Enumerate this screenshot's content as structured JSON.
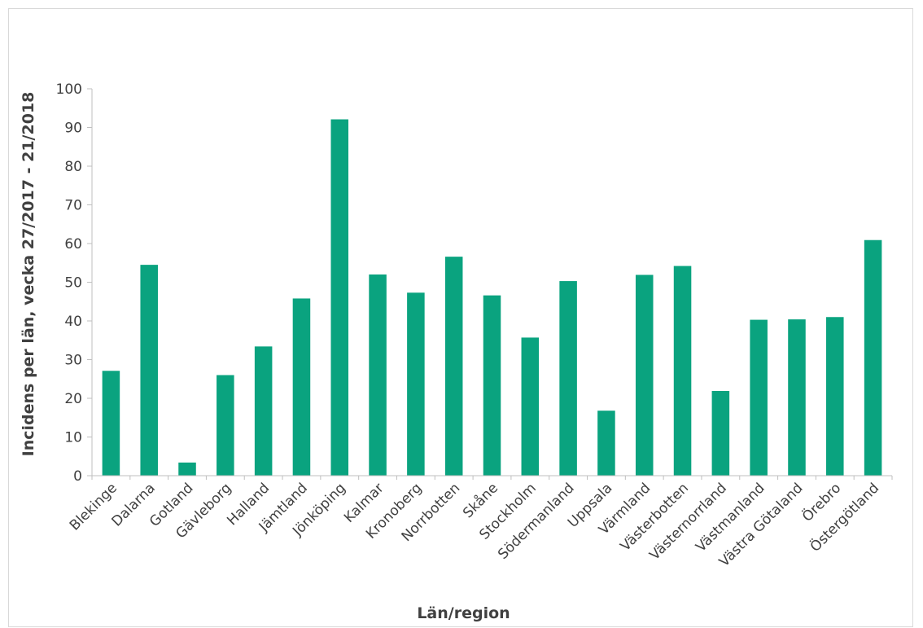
{
  "chart_data": {
    "type": "bar",
    "title": "",
    "xlabel": "Län/region",
    "ylabel": "Incidens per län, vecka 27/2017 - 21/2018",
    "ylim": [
      0,
      100
    ],
    "yticks": [
      0,
      10,
      20,
      30,
      40,
      50,
      60,
      70,
      80,
      90,
      100
    ],
    "bar_color": "#0aa37f",
    "grid": false,
    "categories": [
      "Blekinge",
      "Dalarna",
      "Gotland",
      "Gävleborg",
      "Halland",
      "Jämtland",
      "Jönköping",
      "Kalmar",
      "Kronoberg",
      "Norrbotten",
      "Skåne",
      "Stockholm",
      "Södermanland",
      "Uppsala",
      "Värmland",
      "Västerbotten",
      "Västernorrland",
      "Västmanland",
      "Västra Götaland",
      "Örebro",
      "Östergötland"
    ],
    "values": [
      27.1,
      54.5,
      3.4,
      26.0,
      33.4,
      45.8,
      92.1,
      52.0,
      47.3,
      56.6,
      46.6,
      35.7,
      50.3,
      16.8,
      51.9,
      54.2,
      21.9,
      40.3,
      40.4,
      41.0,
      60.9
    ]
  }
}
